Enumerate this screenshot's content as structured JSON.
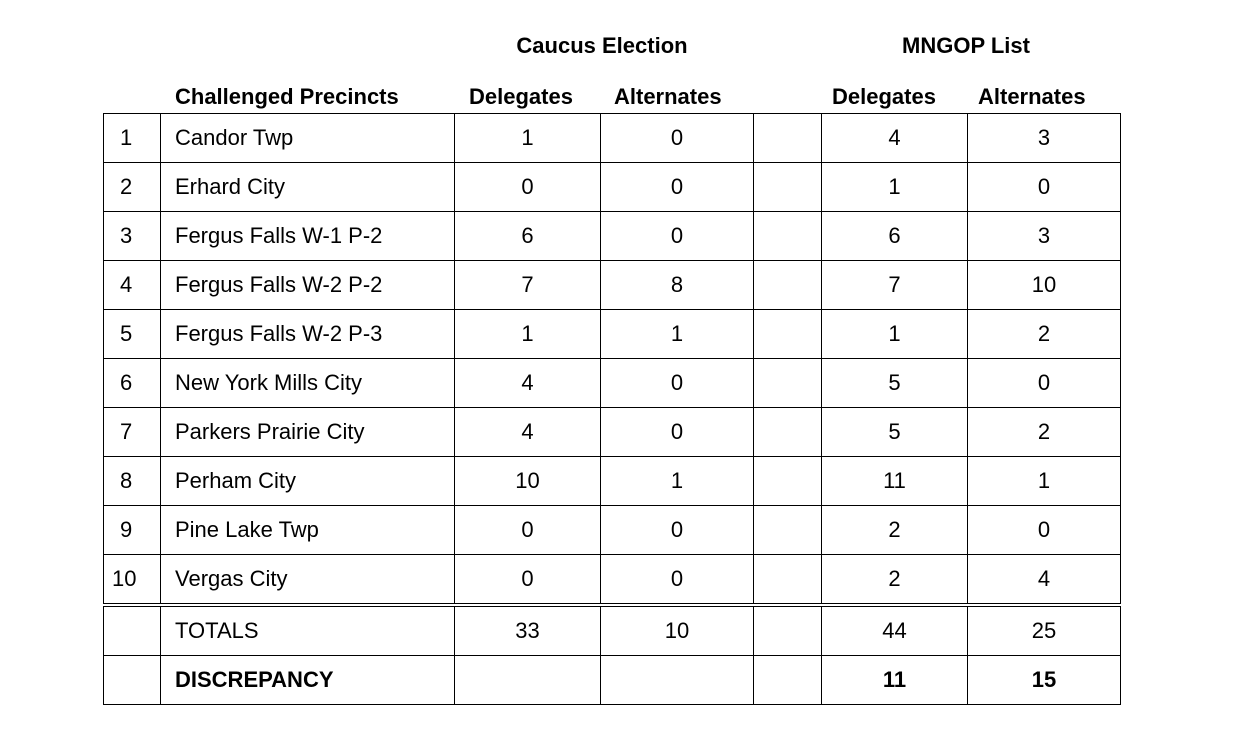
{
  "headers": {
    "caucus_election": "Caucus Election",
    "mngop_list": "MNGOP List",
    "challenged_precincts": "Challenged Precincts",
    "caucus_delegates": "Delegates",
    "caucus_alternates": "Alternates",
    "mngop_delegates": "Delegates",
    "mngop_alternates": "Alternates"
  },
  "rows": [
    {
      "num": "1",
      "precinct": "Candor Twp",
      "caucus_delegates": "1",
      "caucus_alternates": "0",
      "mngop_delegates": "4",
      "mngop_alternates": "3"
    },
    {
      "num": "2",
      "precinct": "Erhard City",
      "caucus_delegates": "0",
      "caucus_alternates": "0",
      "mngop_delegates": "1",
      "mngop_alternates": "0"
    },
    {
      "num": "3",
      "precinct": "Fergus Falls W-1 P-2",
      "caucus_delegates": "6",
      "caucus_alternates": "0",
      "mngop_delegates": "6",
      "mngop_alternates": "3"
    },
    {
      "num": "4",
      "precinct": "Fergus Falls W-2 P-2",
      "caucus_delegates": "7",
      "caucus_alternates": "8",
      "mngop_delegates": "7",
      "mngop_alternates": "10"
    },
    {
      "num": "5",
      "precinct": "Fergus Falls W-2 P-3",
      "caucus_delegates": "1",
      "caucus_alternates": "1",
      "mngop_delegates": "1",
      "mngop_alternates": "2"
    },
    {
      "num": "6",
      "precinct": "New York Mills City",
      "caucus_delegates": "4",
      "caucus_alternates": "0",
      "mngop_delegates": "5",
      "mngop_alternates": "0"
    },
    {
      "num": "7",
      "precinct": "Parkers Prairie City",
      "caucus_delegates": "4",
      "caucus_alternates": "0",
      "mngop_delegates": "5",
      "mngop_alternates": "2"
    },
    {
      "num": "8",
      "precinct": "Perham City",
      "caucus_delegates": "10",
      "caucus_alternates": "1",
      "mngop_delegates": "11",
      "mngop_alternates": "1"
    },
    {
      "num": "9",
      "precinct": "Pine Lake Twp",
      "caucus_delegates": "0",
      "caucus_alternates": "0",
      "mngop_delegates": "2",
      "mngop_alternates": "0"
    },
    {
      "num": "10",
      "precinct": "Vergas City",
      "caucus_delegates": "0",
      "caucus_alternates": "0",
      "mngop_delegates": "2",
      "mngop_alternates": "4"
    }
  ],
  "totals": {
    "label": "TOTALS",
    "caucus_delegates": "33",
    "caucus_alternates": "10",
    "mngop_delegates": "44",
    "mngop_alternates": "25"
  },
  "discrepancy": {
    "label": "DISCREPANCY",
    "mngop_delegates": "11",
    "mngop_alternates": "15"
  }
}
